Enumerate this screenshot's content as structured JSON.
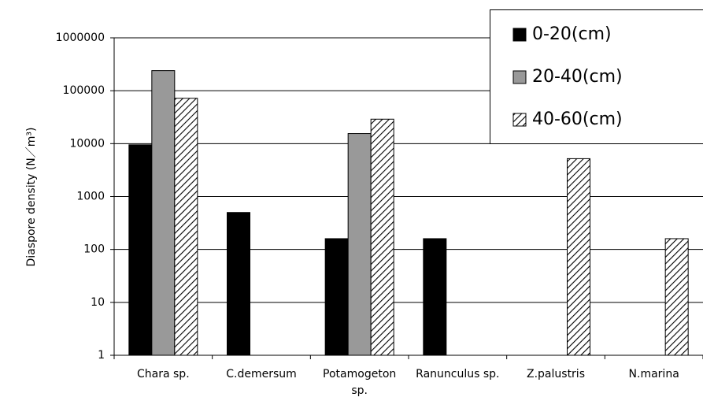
{
  "chart_data": {
    "type": "bar",
    "y_label": "Diaspore density (N／m³)",
    "categories": [
      "Chara sp.",
      "C.demersum",
      "Potamogeton sp.",
      "Ranunculus sp.",
      "Z.palustris",
      "N.marina"
    ],
    "series": [
      {
        "name": "0-20(cm)",
        "color": "#000000",
        "values": [
          9500,
          500,
          160,
          160,
          null,
          null
        ]
      },
      {
        "name": "20-40(cm)",
        "color": "#999999",
        "values": [
          240000,
          null,
          15500,
          null,
          null,
          null
        ]
      },
      {
        "name": "40-60(cm)",
        "color": "#000000",
        "pattern": "hatch",
        "values": [
          72000,
          null,
          29000,
          null,
          5200,
          160
        ]
      }
    ],
    "log_scale": true,
    "ylim": [
      1,
      1000000
    ],
    "yticks": [
      1,
      10,
      100,
      1000,
      10000,
      100000,
      1000000
    ],
    "grid": true,
    "legend": "upper right"
  }
}
